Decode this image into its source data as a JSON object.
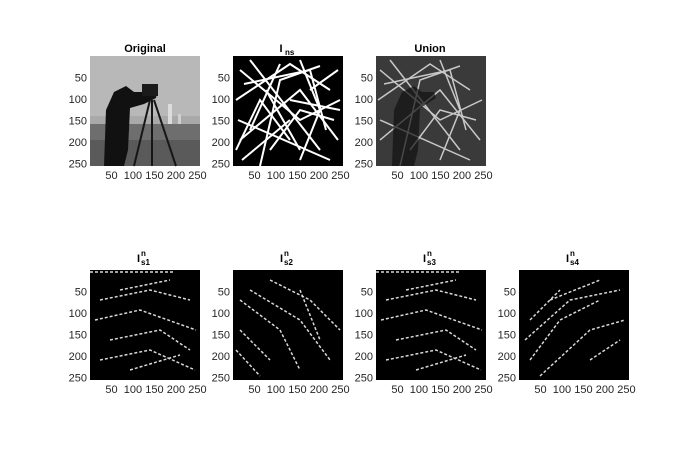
{
  "figure": {
    "panels": [
      {
        "title": "Original",
        "main": "",
        "sup": "",
        "sub": "",
        "kind": "photo"
      },
      {
        "title": "",
        "main": "I",
        "sup": "",
        "sub": "ns",
        "kind": "edges-dense"
      },
      {
        "title": "Union",
        "main": "",
        "sup": "",
        "sub": "",
        "kind": "union"
      },
      {
        "title": "",
        "main": "I",
        "sup": "n",
        "sub": "s1",
        "kind": "edges-sparse"
      },
      {
        "title": "",
        "main": "I",
        "sup": "n",
        "sub": "s2",
        "kind": "edges-sparse"
      },
      {
        "title": "",
        "main": "I",
        "sup": "n",
        "sub": "s3",
        "kind": "edges-sparse"
      },
      {
        "title": "",
        "main": "I",
        "sup": "n",
        "sub": "s4",
        "kind": "edges-sparse"
      }
    ],
    "x_ticks": [
      "50",
      "100",
      "150",
      "200",
      "250"
    ],
    "y_ticks": [
      "50",
      "100",
      "150",
      "200",
      "250"
    ],
    "colors": {
      "background": "#000000",
      "edge": "#ffffff",
      "gray_sky": "#a8a8a8",
      "axis_text": "#262626"
    }
  }
}
